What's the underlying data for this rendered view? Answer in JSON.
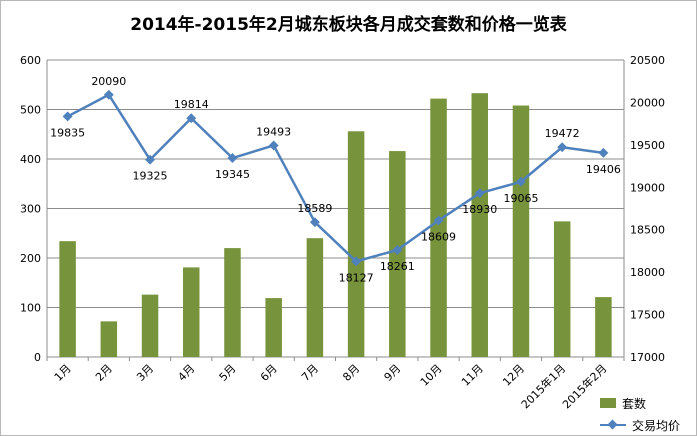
{
  "chart_data": {
    "type": "bar",
    "title": "2014年-2015年2月城东板块各月成交套数和价格一览表",
    "categories": [
      "1月",
      "2月",
      "3月",
      "4月",
      "5月",
      "6月",
      "7月",
      "8月",
      "9月",
      "10月",
      "11月",
      "12月",
      "2015年1月",
      "2015年2月"
    ],
    "series": [
      {
        "name": "套数",
        "type": "bar",
        "axis": "left",
        "color": "#77933c",
        "values": [
          234,
          72,
          126,
          181,
          220,
          119,
          240,
          456,
          416,
          522,
          533,
          508,
          274,
          121
        ]
      },
      {
        "name": "交易均价",
        "type": "line",
        "axis": "right",
        "color": "#4f81bd",
        "values": [
          19835,
          20090,
          19325,
          19814,
          19345,
          19493,
          18589,
          18127,
          18261,
          18609,
          18930,
          19065,
          19472,
          19406
        ]
      }
    ],
    "y_left": {
      "min": 0,
      "max": 600,
      "step": 100,
      "ticks": [
        "0",
        "100",
        "200",
        "300",
        "400",
        "500",
        "600"
      ]
    },
    "y_right": {
      "min": 17000,
      "max": 20500,
      "step": 500,
      "ticks": [
        "17000",
        "17500",
        "18000",
        "18500",
        "19000",
        "19500",
        "20000",
        "20500"
      ]
    },
    "data_labels": [
      "19835",
      "20090",
      "19325",
      "19814",
      "19345",
      "19493",
      "18589",
      "18127",
      "18261",
      "18609",
      "18930",
      "19065",
      "19472",
      "19406"
    ],
    "grid": true,
    "legend_position": "bottom-right"
  }
}
